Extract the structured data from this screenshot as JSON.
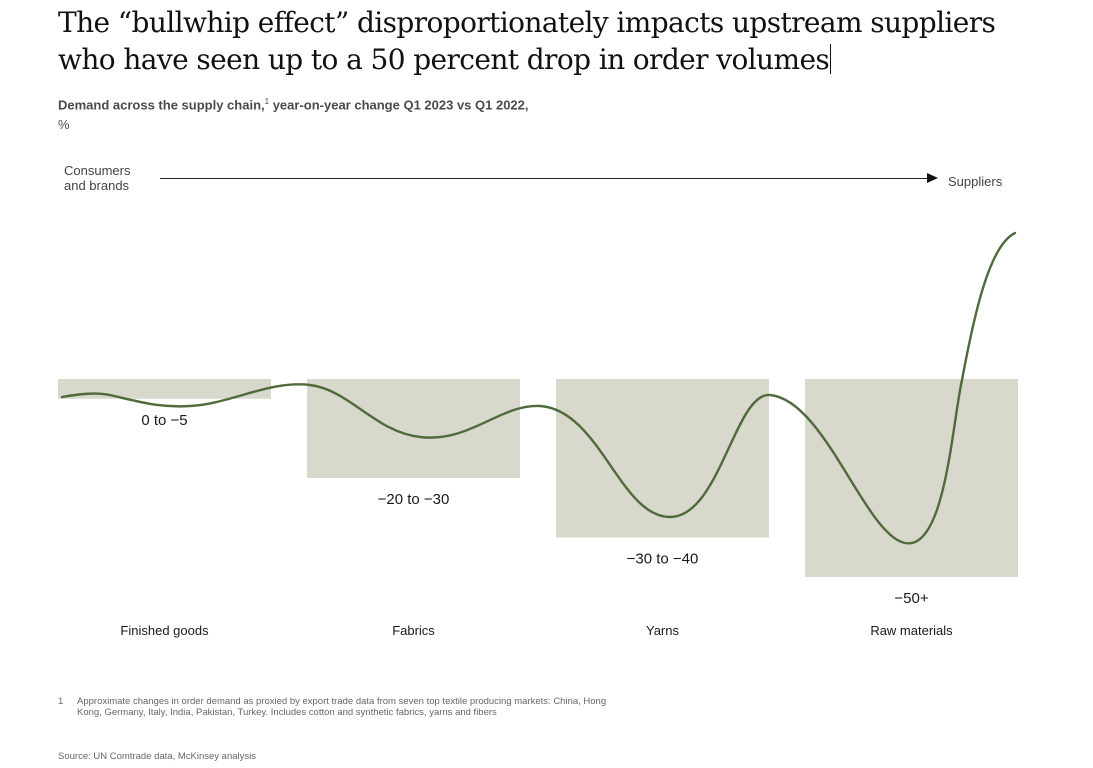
{
  "title": {
    "line1": "The “bullwhip effect” disproportionately impacts upstream suppliers",
    "line2": "who have seen up to a 50 percent drop in order volumes"
  },
  "subtitle": {
    "main": "Demand across the supply chain,",
    "sup": "1",
    "rest": " year-on-year change Q1 2023 vs Q1 2022,",
    "unit": "%"
  },
  "flow": {
    "start_label": [
      "Consumers",
      "and brands"
    ],
    "end_label": "Suppliers"
  },
  "chart_data": {
    "type": "bar",
    "categories": [
      "Finished goods",
      "Fabrics",
      "Yarns",
      "Raw materials"
    ],
    "ranges": [
      [
        0,
        -5
      ],
      [
        -20,
        -30
      ],
      [
        -30,
        -40
      ],
      [
        -50,
        null
      ]
    ],
    "value_labels": [
      "0 to −5",
      "−20 to −30",
      "−30 to −40",
      "−50+"
    ],
    "values": [
      -5,
      -25,
      -40,
      -50
    ],
    "ylim": [
      -55,
      0
    ],
    "colors": {
      "box": "#d8d8cc",
      "curve": "#4f6b3c"
    }
  },
  "footnote": {
    "number": "1",
    "text": "Approximate changes in order demand as proxied by export trade data from seven top textile producing markets: China, Hong Kong, Germany, Italy, India, Pakistan, Turkey. Includes cotton and synthetic fabrics, yarns and fibers"
  },
  "source": "Source: UN Comtrade data, McKinsey analysis"
}
